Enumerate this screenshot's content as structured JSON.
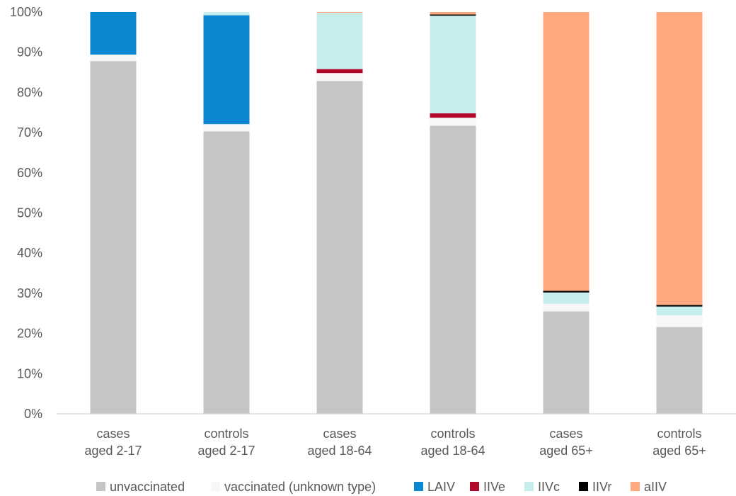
{
  "chart_data": {
    "type": "bar",
    "stacked": true,
    "percent_stacked": true,
    "categories": [
      [
        "cases",
        "aged 2-17"
      ],
      [
        "controls",
        "aged 2-17"
      ],
      [
        "cases",
        "aged 18-64"
      ],
      [
        "controls",
        "aged 18-64"
      ],
      [
        "cases",
        "aged 65+"
      ],
      [
        "controls",
        "aged 65+"
      ]
    ],
    "series": [
      {
        "name": "unvaccinated",
        "color": "#c5c5c5",
        "values": [
          87.8,
          70.3,
          82.8,
          71.7,
          25.5,
          21.6
        ]
      },
      {
        "name": "vaccinated (unknown type)",
        "color": "#f7f7f7",
        "values": [
          1.6,
          1.8,
          2.0,
          2.0,
          1.9,
          2.9
        ]
      },
      {
        "name": "LAIV",
        "color": "#0b86d1",
        "values": [
          10.6,
          27.1,
          0.0,
          0.0,
          0.0,
          0.0
        ]
      },
      {
        "name": "IIVe",
        "color": "#b2082c",
        "values": [
          0.0,
          0.0,
          1.0,
          1.1,
          0.0,
          0.0
        ]
      },
      {
        "name": "IIVc",
        "color": "#c6eeee",
        "values": [
          0.0,
          0.8,
          14.0,
          24.3,
          2.8,
          2.2
        ]
      },
      {
        "name": "IIVr",
        "color": "#000000",
        "values": [
          0.0,
          0.0,
          0.0,
          0.3,
          0.4,
          0.4
        ]
      },
      {
        "name": "aIIV",
        "color": "#ffa97e",
        "values": [
          0.0,
          0.0,
          0.2,
          0.6,
          69.4,
          72.9
        ]
      }
    ],
    "ylim": [
      0,
      100
    ],
    "yticks": [
      "0%",
      "10%",
      "20%",
      "30%",
      "40%",
      "50%",
      "60%",
      "70%",
      "80%",
      "90%",
      "100%"
    ],
    "grid": false,
    "legend_position": "bottom",
    "title": "",
    "xlabel": "",
    "ylabel": ""
  }
}
